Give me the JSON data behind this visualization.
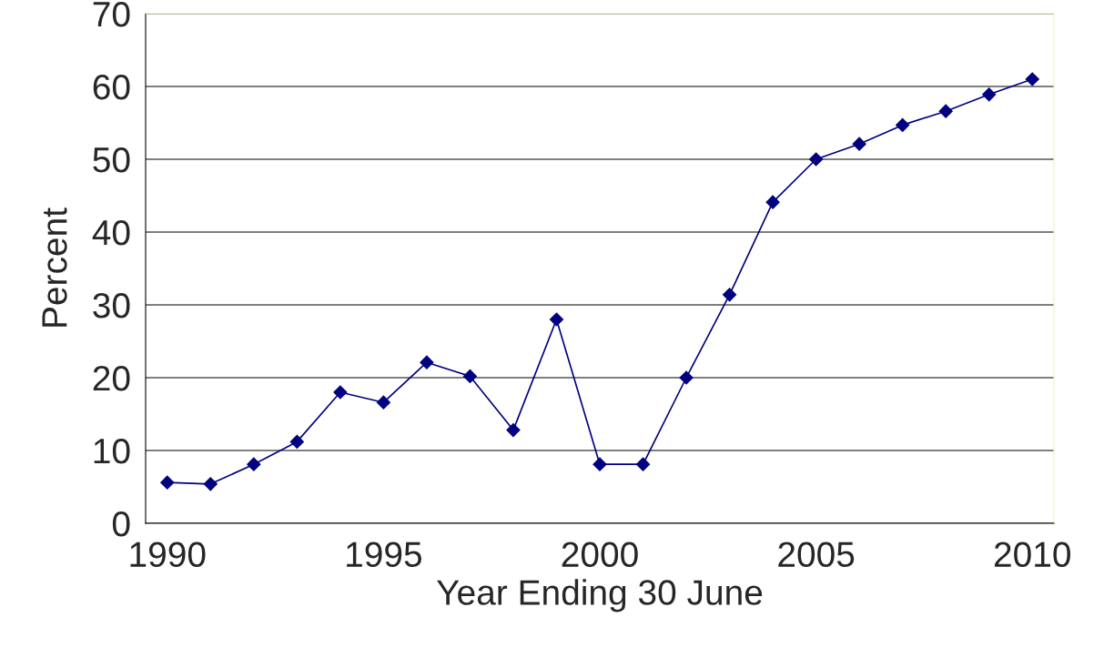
{
  "chart_data": {
    "type": "line",
    "xlabel": "Year Ending 30 June",
    "ylabel": "Percent",
    "categories": [
      "1990",
      null,
      null,
      null,
      null,
      "1995",
      null,
      null,
      null,
      null,
      "2000",
      null,
      null,
      null,
      null,
      "2005",
      null,
      null,
      null,
      null,
      "2010"
    ],
    "series": [
      {
        "color": "#000080",
        "values": [
          5.6,
          5.4,
          8.1,
          11.2,
          18,
          16.6,
          22.1,
          20.2,
          12.8,
          28,
          8.1,
          8.1,
          20,
          31.4,
          44.1,
          50,
          52.1,
          54.7,
          56.6,
          58.9,
          61
        ]
      }
    ],
    "ylim": [
      0,
      70
    ],
    "yticks": [
      0,
      10,
      20,
      30,
      40,
      50,
      60,
      70
    ],
    "grid": "y",
    "marker": "diamond",
    "line_style": "solid",
    "legend": false
  }
}
